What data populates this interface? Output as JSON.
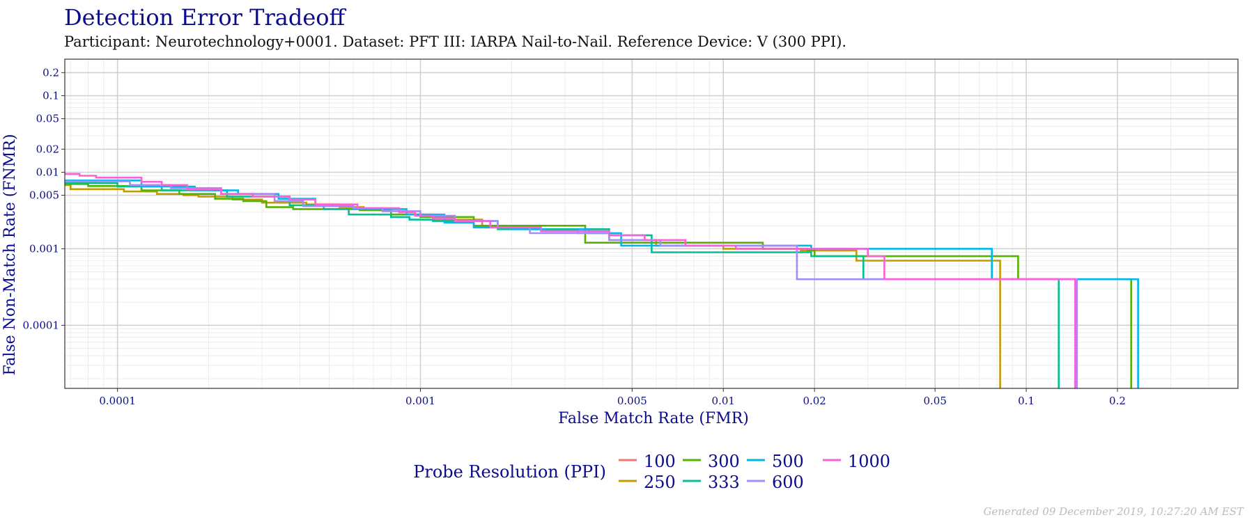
{
  "colors": {
    "title": "#0a0a8c",
    "grid_major": "#cfcfcf",
    "grid_minor": "#ececec",
    "frame": "#333333"
  },
  "footer": "Generated 09 December 2019, 10:27:20 AM EST",
  "chart_data": {
    "type": "line",
    "step": true,
    "title": "Detection Error Tradeoff",
    "subtitle": "Participant: Neurotechnology+0001. Dataset: PFT III: IARPA Nail-to-Nail. Reference Device: V (300 PPI).",
    "xlabel": "False Match Rate (FMR)",
    "ylabel": "False Non-Match Rate (FNMR)",
    "xscale": "log",
    "yscale": "log",
    "xlim": [
      6.7e-05,
      0.5
    ],
    "ylim": [
      1.5e-05,
      0.3
    ],
    "grid": true,
    "x_ticks": [
      {
        "value": 0.0001,
        "label": "0.0001"
      },
      {
        "value": 0.001,
        "label": "0.001"
      },
      {
        "value": 0.005,
        "label": "0.005"
      },
      {
        "value": 0.01,
        "label": "0.01"
      },
      {
        "value": 0.02,
        "label": "0.02"
      },
      {
        "value": 0.05,
        "label": "0.05"
      },
      {
        "value": 0.1,
        "label": "0.1"
      },
      {
        "value": 0.2,
        "label": "0.2"
      }
    ],
    "y_ticks": [
      {
        "value": 0.0001,
        "label": "0.0001"
      },
      {
        "value": 0.001,
        "label": "0.001"
      },
      {
        "value": 0.005,
        "label": "0.005"
      },
      {
        "value": 0.01,
        "label": "0.01"
      },
      {
        "value": 0.02,
        "label": "0.02"
      },
      {
        "value": 0.05,
        "label": "0.05"
      },
      {
        "value": 0.1,
        "label": "0.1"
      },
      {
        "value": 0.2,
        "label": "0.2"
      }
    ],
    "legend": {
      "title": "Probe Resolution (PPI)",
      "position": "bottom"
    },
    "series": [
      {
        "name": "100",
        "color": "#f8766d",
        "points": []
      },
      {
        "name": "250",
        "color": "#c49a00",
        "points": [
          [
            6.7e-05,
            0.0068
          ],
          [
            7e-05,
            0.006
          ],
          [
            9.5e-05,
            0.006
          ],
          [
            0.000105,
            0.0056
          ],
          [
            0.00012,
            0.0056
          ],
          [
            0.000135,
            0.0052
          ],
          [
            0.000165,
            0.005
          ],
          [
            0.000185,
            0.0048
          ],
          [
            0.00024,
            0.0044
          ],
          [
            0.0003,
            0.004
          ],
          [
            0.00042,
            0.0038
          ],
          [
            0.00054,
            0.0035
          ],
          [
            0.00065,
            0.0032
          ],
          [
            0.0008,
            0.0028
          ],
          [
            0.0011,
            0.0024
          ],
          [
            0.0016,
            0.0019
          ],
          [
            0.0024,
            0.0018
          ],
          [
            0.0033,
            0.0016
          ],
          [
            0.0042,
            0.0013
          ],
          [
            0.006,
            0.0011
          ],
          [
            0.01,
            0.001
          ],
          [
            0.018,
            0.00095
          ],
          [
            0.0275,
            0.0007
          ],
          [
            0.082,
            0.0004
          ],
          [
            0.082,
            1.5e-05
          ]
        ]
      },
      {
        "name": "300",
        "color": "#53b400",
        "points": [
          [
            6.7e-05,
            0.007
          ],
          [
            8e-05,
            0.0066
          ],
          [
            0.00012,
            0.0058
          ],
          [
            0.00016,
            0.0052
          ],
          [
            0.00021,
            0.0045
          ],
          [
            0.00026,
            0.0042
          ],
          [
            0.00031,
            0.0035
          ],
          [
            0.00038,
            0.0033
          ],
          [
            0.00063,
            0.0032
          ],
          [
            0.0008,
            0.0028
          ],
          [
            0.001,
            0.0026
          ],
          [
            0.0015,
            0.002
          ],
          [
            0.0035,
            0.0012
          ],
          [
            0.0055,
            0.0012
          ],
          [
            0.0085,
            0.0012
          ],
          [
            0.0135,
            0.001
          ],
          [
            0.019,
            0.00095
          ],
          [
            0.02,
            0.0008
          ],
          [
            0.094,
            0.0008
          ],
          [
            0.094,
            0.0004
          ],
          [
            0.222,
            0.0004
          ],
          [
            0.222,
            1.5e-05
          ]
        ]
      },
      {
        "name": "333",
        "color": "#00c094",
        "points": [
          [
            6.7e-05,
            0.0072
          ],
          [
            0.0001,
            0.0065
          ],
          [
            0.00014,
            0.0058
          ],
          [
            0.00023,
            0.0048
          ],
          [
            0.00037,
            0.0037
          ],
          [
            0.00048,
            0.0033
          ],
          [
            0.00058,
            0.0028
          ],
          [
            0.0008,
            0.0026
          ],
          [
            0.00092,
            0.0024
          ],
          [
            0.0011,
            0.0023
          ],
          [
            0.0018,
            0.0018
          ],
          [
            0.0042,
            0.0015
          ],
          [
            0.0058,
            0.0009
          ],
          [
            0.0195,
            0.0008
          ],
          [
            0.029,
            0.0008
          ],
          [
            0.029,
            0.0004
          ],
          [
            0.128,
            0.0004
          ],
          [
            0.128,
            1.5e-05
          ]
        ]
      },
      {
        "name": "500",
        "color": "#00b6eb",
        "points": [
          [
            6.7e-05,
            0.0078
          ],
          [
            0.00012,
            0.0065
          ],
          [
            0.00018,
            0.0058
          ],
          [
            0.00025,
            0.0052
          ],
          [
            0.00034,
            0.0045
          ],
          [
            0.00045,
            0.0036
          ],
          [
            0.0006,
            0.0033
          ],
          [
            0.0009,
            0.0028
          ],
          [
            0.0012,
            0.0022
          ],
          [
            0.0015,
            0.0019
          ],
          [
            0.002,
            0.0018
          ],
          [
            0.0026,
            0.0017
          ],
          [
            0.0033,
            0.0018
          ],
          [
            0.0036,
            0.0016
          ],
          [
            0.0046,
            0.0011
          ],
          [
            0.0064,
            0.0011
          ],
          [
            0.0093,
            0.0011
          ],
          [
            0.0195,
            0.001
          ],
          [
            0.077,
            0.0008
          ],
          [
            0.077,
            0.0004
          ],
          [
            0.234,
            0.0004
          ],
          [
            0.234,
            1.5e-05
          ]
        ]
      },
      {
        "name": "600",
        "color": "#a58aff",
        "points": [
          [
            6.7e-05,
            0.0076
          ],
          [
            0.00011,
            0.0068
          ],
          [
            0.00015,
            0.0062
          ],
          [
            0.00022,
            0.0052
          ],
          [
            0.00033,
            0.0042
          ],
          [
            0.00041,
            0.0036
          ],
          [
            0.0006,
            0.0034
          ],
          [
            0.00075,
            0.0031
          ],
          [
            0.001,
            0.0027
          ],
          [
            0.0013,
            0.0023
          ],
          [
            0.0018,
            0.0019
          ],
          [
            0.0023,
            0.0016
          ],
          [
            0.0035,
            0.0016
          ],
          [
            0.0042,
            0.0013
          ],
          [
            0.0062,
            0.0011
          ],
          [
            0.0175,
            0.0008
          ],
          [
            0.0175,
            0.0004
          ],
          [
            0.147,
            0.0004
          ],
          [
            0.147,
            1.5e-05
          ]
        ]
      },
      {
        "name": "1000",
        "color": "#fb61d7",
        "points": [
          [
            6.7e-05,
            0.0095
          ],
          [
            7.5e-05,
            0.009
          ],
          [
            8.5e-05,
            0.0085
          ],
          [
            0.0001,
            0.0085
          ],
          [
            0.00012,
            0.0075
          ],
          [
            0.00014,
            0.0068
          ],
          [
            0.00017,
            0.006
          ],
          [
            0.00022,
            0.0052
          ],
          [
            0.00028,
            0.0048
          ],
          [
            0.00037,
            0.0044
          ],
          [
            0.00045,
            0.0038
          ],
          [
            0.00062,
            0.0034
          ],
          [
            0.00085,
            0.003
          ],
          [
            0.00096,
            0.0027
          ],
          [
            0.0011,
            0.0025
          ],
          [
            0.0013,
            0.0023
          ],
          [
            0.0017,
            0.0019
          ],
          [
            0.0025,
            0.0017
          ],
          [
            0.0042,
            0.0015
          ],
          [
            0.0055,
            0.0013
          ],
          [
            0.0075,
            0.0011
          ],
          [
            0.011,
            0.001
          ],
          [
            0.03,
            0.0008
          ],
          [
            0.034,
            0.0004
          ],
          [
            0.145,
            0.0004
          ],
          [
            0.145,
            1.5e-05
          ]
        ]
      }
    ]
  }
}
